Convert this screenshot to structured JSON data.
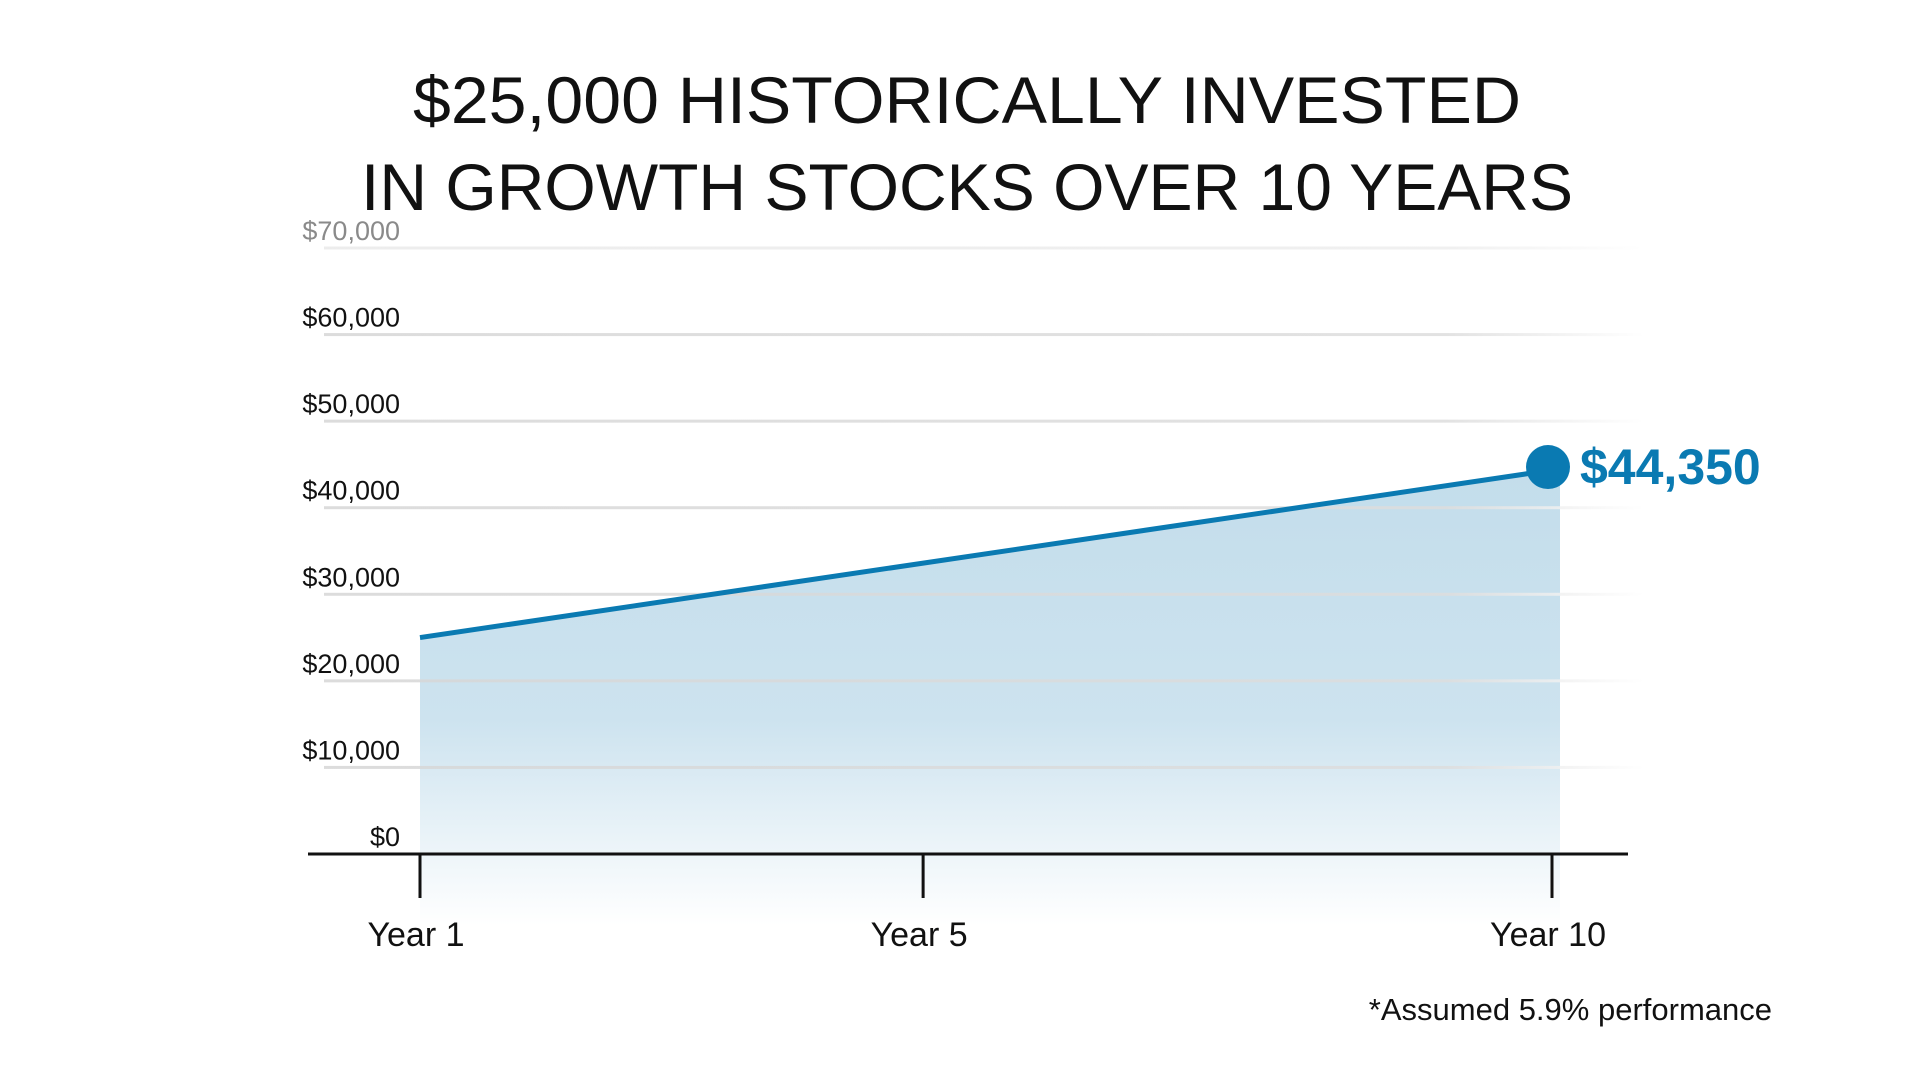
{
  "chart_data": {
    "type": "area",
    "title_lines": [
      "$25,000 HISTORICALLY INVESTED",
      "IN GROWTH STOCKS OVER 10 YEARS"
    ],
    "xlabel": "",
    "ylabel": "",
    "x_categories": [
      "Year 1",
      "Year 5",
      "Year 10"
    ],
    "x_values": [
      1,
      5,
      10
    ],
    "xlim": [
      1,
      10
    ],
    "series": [
      {
        "name": "Growth stocks",
        "points": [
          {
            "x": 1,
            "y": 25000
          },
          {
            "x": 10,
            "y": 44350
          }
        ]
      }
    ],
    "ylim": [
      0,
      70000
    ],
    "yticks": [
      0,
      10000,
      20000,
      30000,
      40000,
      50000,
      60000,
      70000
    ],
    "ytick_labels": [
      "$0",
      "$10,000",
      "$20,000",
      "$30,000",
      "$40,000",
      "$50,000",
      "$60,000",
      "$70,000"
    ],
    "grid": true,
    "end_annotation": "$44,350",
    "footnote": "*Assumed 5.9% performance",
    "colors": {
      "line": "#0A7AB2",
      "fill_top": "#C3DDEB",
      "fill_bottom": "#FFFFFF",
      "grid": "#D9D9D9",
      "axis": "#111111",
      "faded_label": "#8A8A8A"
    }
  }
}
